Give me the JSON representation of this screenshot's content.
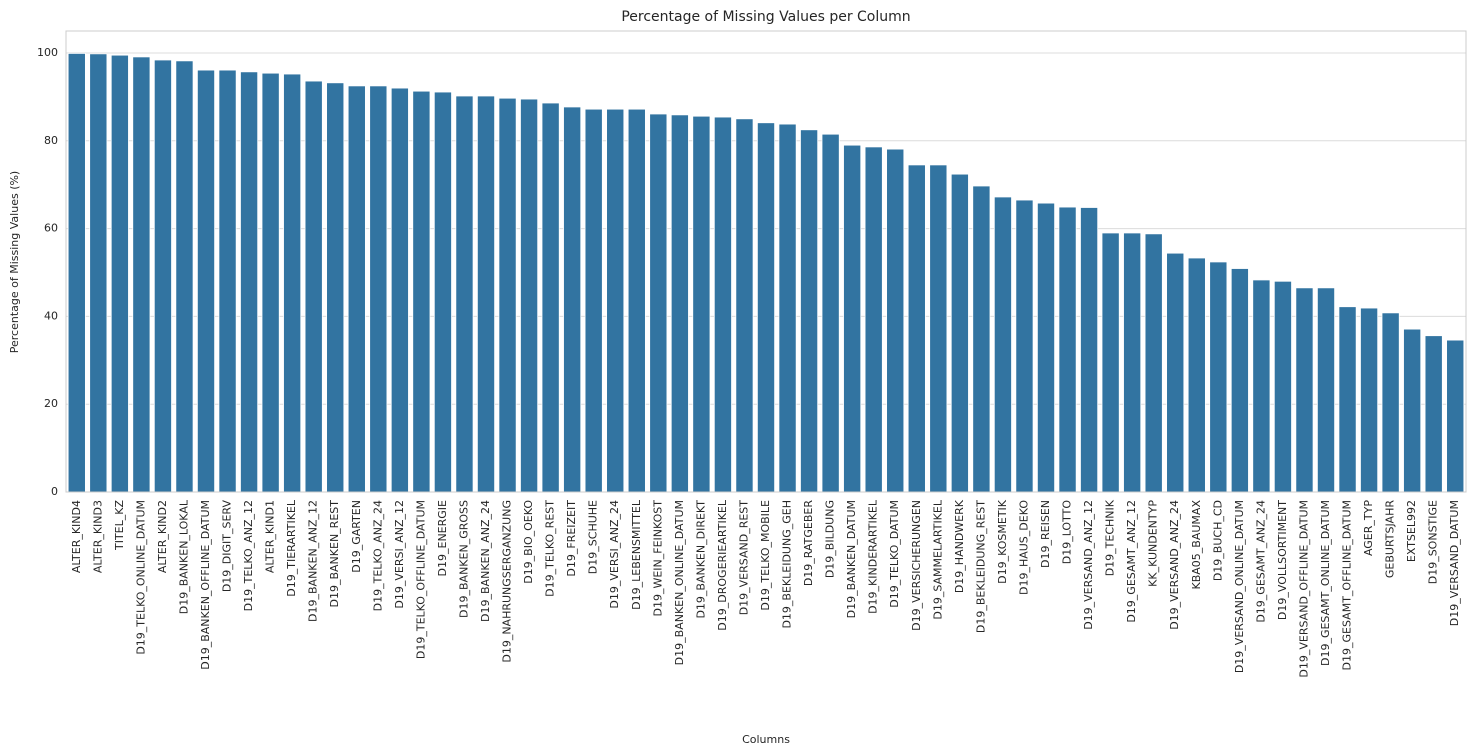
{
  "chart_data": {
    "type": "bar",
    "title": "Percentage of Missing Values per Column",
    "x_label": "Columns",
    "y_label": "Percentage of Missing Values (%)",
    "categories": [
      "ALTER_KIND4",
      "ALTER_KIND3",
      "TITEL_KZ",
      "D19_TELKO_ONLINE_DATUM",
      "ALTER_KIND2",
      "D19_BANKEN_LOKAL",
      "D19_BANKEN_OFFLINE_DATUM",
      "D19_DIGIT_SERV",
      "D19_TELKO_ANZ_12",
      "ALTER_KIND1",
      "D19_TIERARTIKEL",
      "D19_BANKEN_ANZ_12",
      "D19_BANKEN_REST",
      "D19_GARTEN",
      "D19_TELKO_ANZ_24",
      "D19_VERSI_ANZ_12",
      "D19_TELKO_OFFLINE_DATUM",
      "D19_ENERGIE",
      "D19_BANKEN_GROSS",
      "D19_BANKEN_ANZ_24",
      "D19_NAHRUNGSERGANZUNG",
      "D19_BIO_OEKO",
      "D19_TELKO_REST",
      "D19_FREIZEIT",
      "D19_SCHUHE",
      "D19_VERSI_ANZ_24",
      "D19_LEBENSMITTEL",
      "D19_WEIN_FEINKOST",
      "D19_BANKEN_ONLINE_DATUM",
      "D19_BANKEN_DIREKT",
      "D19_DROGERIEARTIKEL",
      "D19_VERSAND_REST",
      "D19_TELKO_MOBILE",
      "D19_BEKLEIDUNG_GEH",
      "D19_RATGEBER",
      "D19_BILDUNG",
      "D19_BANKEN_DATUM",
      "D19_KINDERARTIKEL",
      "D19_TELKO_DATUM",
      "D19_VERSICHERUNGEN",
      "D19_SAMMELARTIKEL",
      "D19_HANDWERK",
      "D19_BEKLEIDUNG_REST",
      "D19_KOSMETIK",
      "D19_HAUS_DEKO",
      "D19_REISEN",
      "D19_LOTTO",
      "D19_VERSAND_ANZ_12",
      "D19_TECHNIK",
      "D19_GESAMT_ANZ_12",
      "KK_KUNDENTYP",
      "D19_VERSAND_ANZ_24",
      "KBA05_BAUMAX",
      "D19_BUCH_CD",
      "D19_VERSAND_ONLINE_DATUM",
      "D19_GESAMT_ANZ_24",
      "D19_VOLLSORTIMENT",
      "D19_VERSAND_OFFLINE_DATUM",
      "D19_GESAMT_ONLINE_DATUM",
      "D19_GESAMT_OFFLINE_DATUM",
      "AGER_TYP",
      "GEBURTSJAHR",
      "EXTSEL992",
      "D19_SONSTIGE",
      "D19_VERSAND_DATUM"
    ],
    "values": [
      99.9,
      99.8,
      99.5,
      99.1,
      98.4,
      98.2,
      96.1,
      96.1,
      95.7,
      95.4,
      95.2,
      93.6,
      93.2,
      92.5,
      92.5,
      92.0,
      91.3,
      91.1,
      90.2,
      90.2,
      89.7,
      89.5,
      88.6,
      87.7,
      87.2,
      87.2,
      87.2,
      86.1,
      85.9,
      85.6,
      85.4,
      85.0,
      84.1,
      83.8,
      82.5,
      81.5,
      79.0,
      78.6,
      78.1,
      74.5,
      74.5,
      72.4,
      69.7,
      67.2,
      66.5,
      65.8,
      64.9,
      64.8,
      59.0,
      59.0,
      58.8,
      54.4,
      53.3,
      52.4,
      50.9,
      48.3,
      48.0,
      46.5,
      46.5,
      42.2,
      41.9,
      40.8,
      37.1,
      35.6,
      34.6
    ],
    "color": "#3274a1",
    "ylim": [
      0,
      105
    ],
    "yticks": [
      0,
      20,
      40,
      60,
      80,
      100
    ],
    "grid": true
  }
}
